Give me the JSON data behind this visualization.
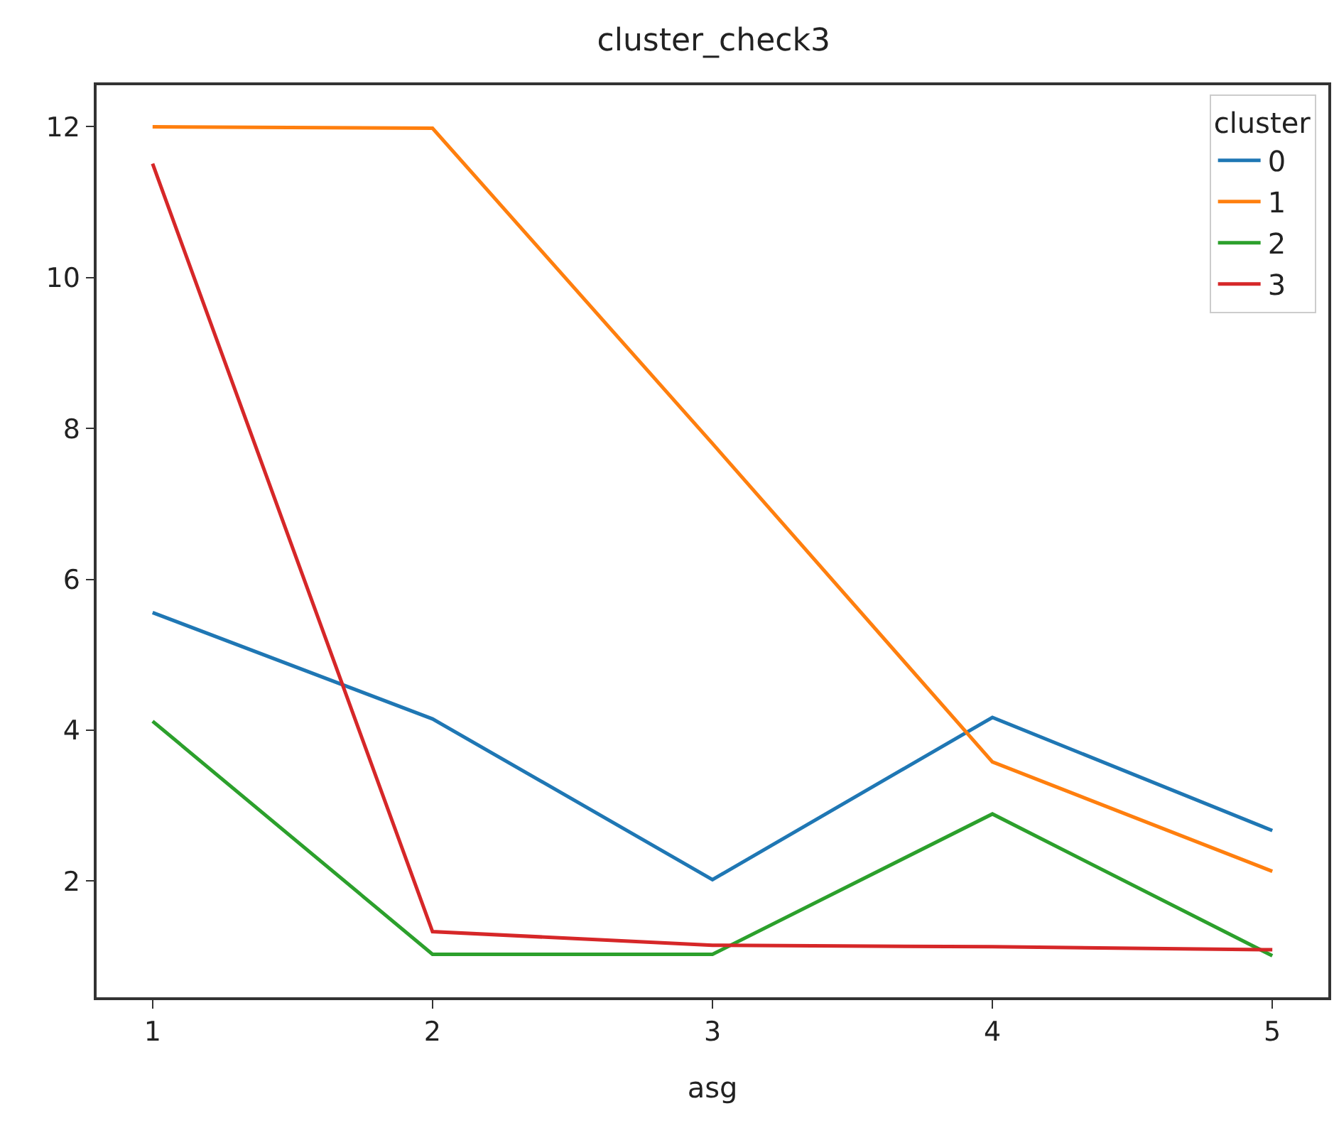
{
  "chart_data": {
    "type": "line",
    "title": "cluster_check3",
    "xlabel": "asg",
    "legend_title": "cluster",
    "x": [
      1,
      2,
      3,
      4,
      5
    ],
    "series": [
      {
        "name": "0",
        "color": "#1f77b4",
        "values": [
          5.56,
          4.15,
          2.02,
          4.17,
          2.67
        ]
      },
      {
        "name": "1",
        "color": "#ff7f0e",
        "values": [
          12.0,
          11.98,
          7.8,
          3.58,
          2.13
        ]
      },
      {
        "name": "2",
        "color": "#2ca02c",
        "values": [
          4.12,
          1.03,
          1.03,
          2.89,
          1.01
        ]
      },
      {
        "name": "3",
        "color": "#d62728",
        "values": [
          11.51,
          1.33,
          1.15,
          1.13,
          1.09
        ]
      }
    ],
    "xlim": [
      0.8,
      5.2
    ],
    "xticks": [
      1,
      2,
      3,
      4,
      5
    ],
    "ylim": [
      0.46,
      12.55
    ],
    "yticks": [
      2,
      4,
      6,
      8,
      10,
      12
    ],
    "grid": false,
    "legend": "top right",
    "marker": "none",
    "line_style": "solid"
  }
}
